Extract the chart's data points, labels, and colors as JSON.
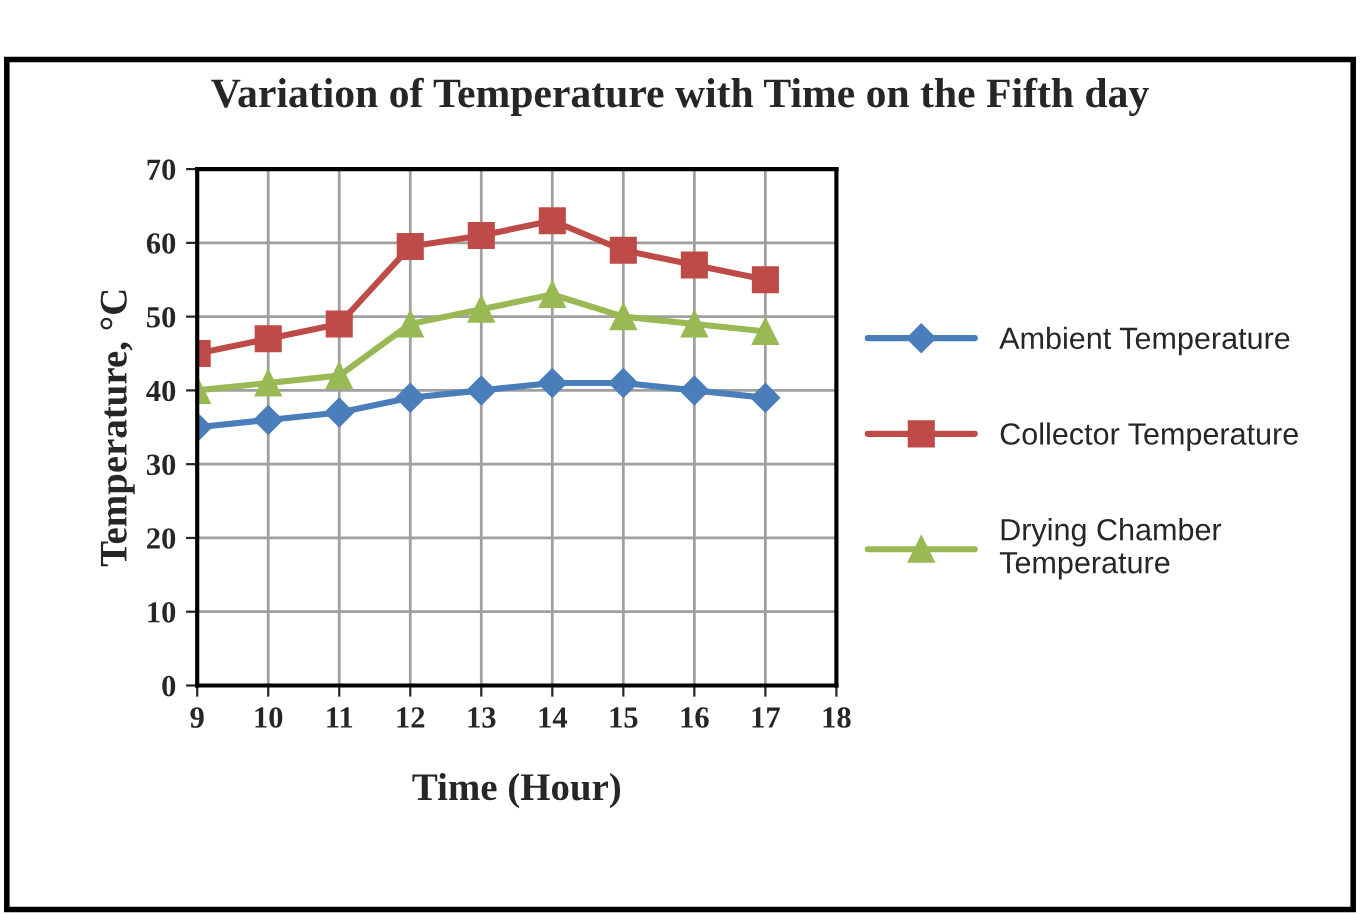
{
  "chart_data": {
    "type": "line",
    "title": "Variation of Temperature with Time on the Fifth day",
    "xlabel": "Time (Hour)",
    "ylabel": "Temperature, °C",
    "x": [
      9,
      10,
      11,
      12,
      13,
      14,
      15,
      16,
      17
    ],
    "series": [
      {
        "name": "Ambient Temperature",
        "color": "#4a7ebb",
        "marker": "diamond",
        "values": [
          35,
          36,
          37,
          39,
          40,
          41,
          41,
          40,
          39
        ]
      },
      {
        "name": "Collector Temperature",
        "color": "#be4b48",
        "marker": "square",
        "values": [
          45,
          47,
          49,
          59.5,
          61,
          63,
          59,
          57,
          55
        ]
      },
      {
        "name": "Drying Chamber\nTemperature",
        "color": "#98b954",
        "marker": "triangle",
        "values": [
          40,
          41,
          42,
          49,
          51,
          53,
          50,
          49,
          48
        ]
      }
    ],
    "xlim": [
      9,
      18
    ],
    "xticks": [
      9,
      10,
      11,
      12,
      13,
      14,
      15,
      16,
      17,
      18
    ],
    "ylim": [
      0,
      70
    ],
    "yticks": [
      0,
      10,
      20,
      30,
      40,
      50,
      60,
      70
    ],
    "grid": true,
    "legend": "right",
    "line_style": "solid"
  }
}
